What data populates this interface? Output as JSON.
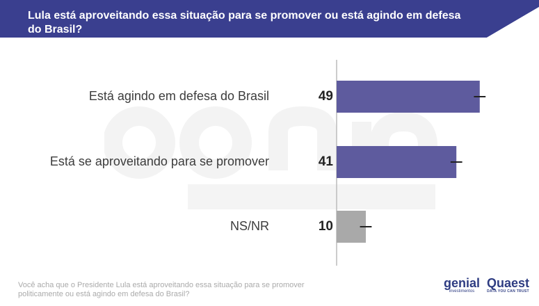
{
  "header": {
    "title": "Lula está aproveitando essa situação para se promover ou está agindo em defesa do Brasil?",
    "background_color": "#3a3f8f"
  },
  "chart_data": {
    "type": "bar",
    "orientation": "horizontal",
    "title": "Lula está aproveitando essa situação para se promover ou está agindo em defesa do Brasil?",
    "categories": [
      "Está agindo em defesa do Brasil",
      "Está se aproveitando para se promover",
      "NS/NR"
    ],
    "values": [
      49,
      41,
      10
    ],
    "error_bar": 2,
    "xlim": [
      0,
      50
    ],
    "colors": [
      "#5e5b9e",
      "#5e5b9e",
      "#a9a9a9"
    ],
    "xlabel": "",
    "ylabel": "",
    "grid": false
  },
  "footnote": "Você acha que o Presidente Lula está aproveitando essa situação para se promover politicamente ou está agindo em defesa do Brasil?",
  "logos": {
    "genial_name": "genial",
    "genial_sub": "investimentos",
    "quaest_name": "Quaest",
    "quaest_tagline": "DATA YOU CAN TRUST"
  }
}
